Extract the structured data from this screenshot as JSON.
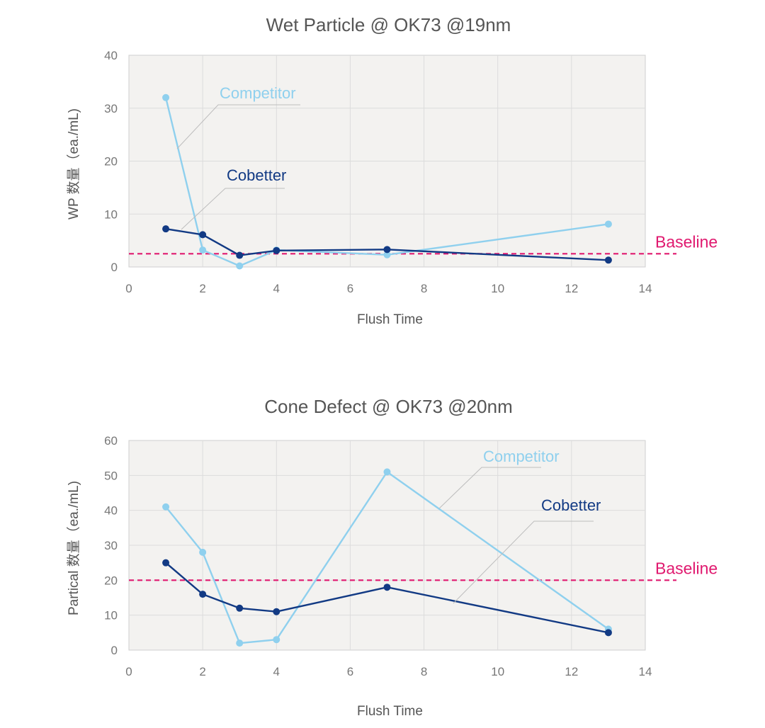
{
  "colors": {
    "competitor": "#8fd0ee",
    "cobetter": "#123a84",
    "baseline": "#e0196f",
    "plot_bg": "#f3f2f0",
    "grid": "#dcdcdc"
  },
  "chart_data": [
    {
      "type": "line",
      "title": "Wet Particle @ OK73 @19nm",
      "xlabel": "Flush Time",
      "ylabel": "WP 数量（ea./mL)",
      "xlim": [
        0,
        14
      ],
      "ylim": [
        0,
        40
      ],
      "xticks": [
        0,
        2,
        4,
        6,
        8,
        10,
        12,
        14
      ],
      "yticks": [
        0,
        10,
        20,
        30,
        40
      ],
      "grid": true,
      "series": [
        {
          "name": "Competitor",
          "x": [
            1,
            2,
            3,
            4,
            7,
            13
          ],
          "y": [
            32,
            3.2,
            0.2,
            3.2,
            2.3,
            8.1
          ]
        },
        {
          "name": "Cobetter",
          "x": [
            1,
            2,
            3,
            4,
            7,
            13
          ],
          "y": [
            7.2,
            6.1,
            2.2,
            3.1,
            3.3,
            1.3
          ]
        }
      ],
      "baseline": {
        "label": "Baseline",
        "value": 2.5
      }
    },
    {
      "type": "line",
      "title": "Cone Defect @ OK73 @20nm",
      "xlabel": "Flush Time",
      "ylabel": "Partical 数量（ea./mL)",
      "xlim": [
        0,
        14
      ],
      "ylim": [
        0,
        60
      ],
      "xticks": [
        0,
        2,
        4,
        6,
        8,
        10,
        12,
        14
      ],
      "yticks": [
        0,
        10,
        20,
        30,
        40,
        50,
        60
      ],
      "grid": true,
      "series": [
        {
          "name": "Competitor",
          "x": [
            1,
            2,
            3,
            4,
            7,
            13
          ],
          "y": [
            41,
            28,
            2,
            3,
            51,
            6
          ]
        },
        {
          "name": "Cobetter",
          "x": [
            1,
            2,
            3,
            4,
            7,
            13
          ],
          "y": [
            25,
            16,
            12,
            11,
            18,
            5
          ]
        }
      ],
      "baseline": {
        "label": "Baseline",
        "value": 20
      }
    }
  ]
}
